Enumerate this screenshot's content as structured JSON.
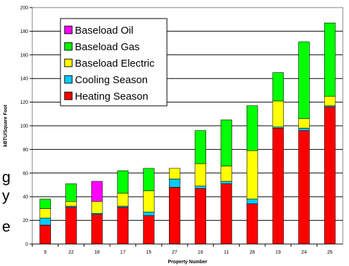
{
  "background_text": [
    "g",
    "y",
    "e"
  ],
  "chart_data": {
    "type": "bar",
    "stacked": true,
    "title": "",
    "xlabel": "Property Number",
    "ylabel": "kBTU/Square Foot",
    "ylim": [
      0,
      200
    ],
    "ytick_step": 20,
    "grid": true,
    "legend_position": "top-left",
    "categories": [
      "9",
      "22",
      "18",
      "17",
      "15",
      "27",
      "16",
      "11",
      "28",
      "19",
      "24",
      "26"
    ],
    "series": [
      {
        "name": "Heating Season",
        "color": "#ff0000",
        "values": [
          16,
          31,
          25,
          31,
          24,
          48,
          47,
          51,
          34,
          98,
          96,
          116
        ]
      },
      {
        "name": "Cooling Season",
        "color": "#00ccff",
        "values": [
          6,
          1,
          1,
          1,
          3,
          7,
          2,
          2,
          4,
          1,
          2,
          1
        ]
      },
      {
        "name": "Baseload Electric",
        "color": "#ffff00",
        "values": [
          8,
          4,
          10,
          11,
          18,
          9,
          19,
          13,
          41,
          22,
          8,
          8
        ]
      },
      {
        "name": "Baseload Gas",
        "color": "#00ff00",
        "values": [
          8,
          15,
          0,
          19,
          19,
          0,
          28,
          39,
          38,
          24,
          65,
          62
        ]
      },
      {
        "name": "Baseload Oil",
        "color": "#ff00ff",
        "values": [
          0,
          0,
          17,
          0,
          0,
          0,
          0,
          0,
          0,
          0,
          0,
          0
        ]
      }
    ],
    "legend_order": [
      "Baseload Oil",
      "Baseload Gas",
      "Baseload Electric",
      "Cooling Season",
      "Heating Season"
    ]
  }
}
